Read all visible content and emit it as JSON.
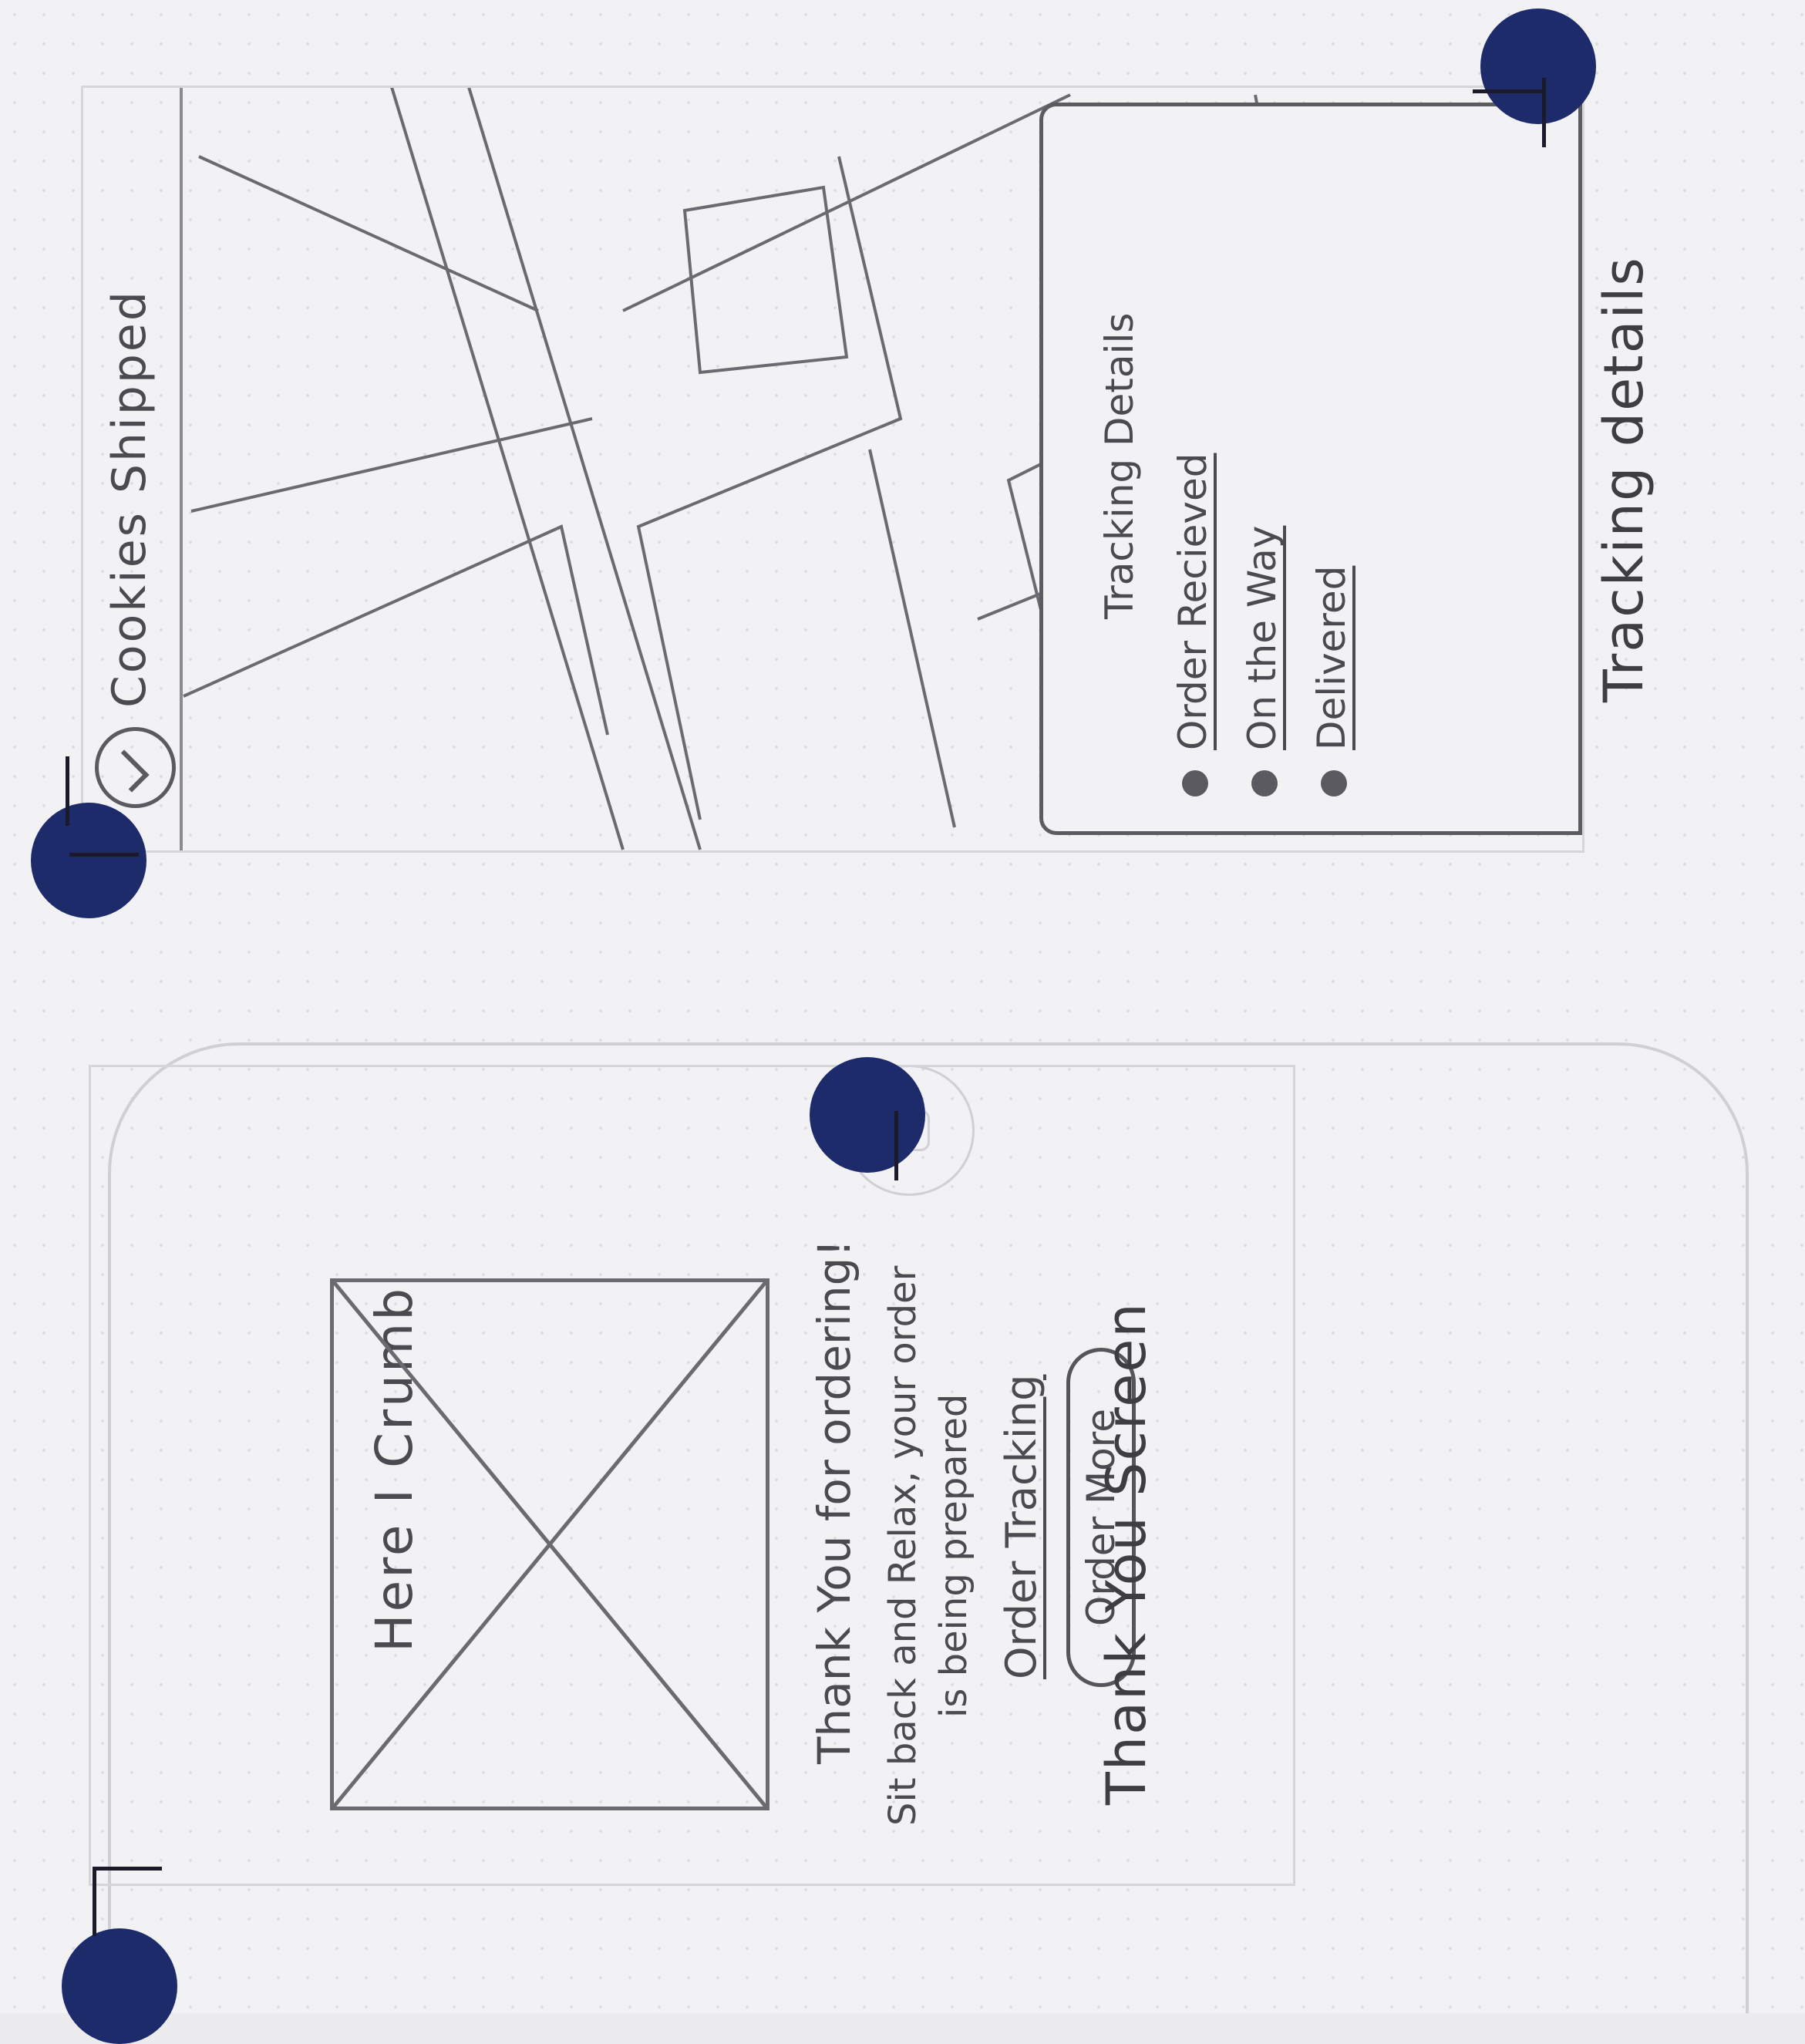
{
  "thank_you_screen": {
    "app_name": "Here I Crumb",
    "thanks_message": "Thank You for ordering!",
    "body_line_1": "Sit back and Relax, your order",
    "body_line_2": "is being prepared",
    "order_tracking_link": "Order Tracking",
    "order_more_button": "Order More",
    "caption": "Thank You Screen"
  },
  "tracking_screen": {
    "status_title": "Cookies Shipped",
    "sheet_title": "Tracking Details",
    "steps": [
      {
        "label": "Order Recieved"
      },
      {
        "label": "On the Way"
      },
      {
        "label": "Delivered"
      }
    ],
    "caption": "Tracking details"
  },
  "icons": {
    "checkmark": "check-circle-icon",
    "location": "map-pin-icon",
    "placeholder": "image-placeholder-icon",
    "home": "home-button-icon"
  },
  "colors": {
    "accent_dot": "#1d2b6b",
    "pencil": "#4a4a50",
    "paper": "#f2f2f4"
  }
}
